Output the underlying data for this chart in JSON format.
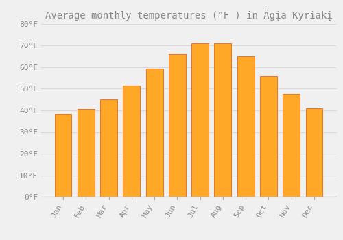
{
  "title": "Average monthly temperatures (°F ) in Ägįa Kyriakį",
  "months": [
    "Jan",
    "Feb",
    "Mar",
    "Apr",
    "May",
    "Jun",
    "Jul",
    "Aug",
    "Sep",
    "Oct",
    "Nov",
    "Dec"
  ],
  "values": [
    38.5,
    40.5,
    45.0,
    51.5,
    59.5,
    66.0,
    71.0,
    71.0,
    65.0,
    56.0,
    47.5,
    41.0
  ],
  "ylim": [
    0,
    80
  ],
  "yticks": [
    0,
    10,
    20,
    30,
    40,
    50,
    60,
    70,
    80
  ],
  "background_color": "#f0f0f0",
  "grid_color": "#d8d8d8",
  "title_fontsize": 10,
  "tick_fontsize": 8,
  "bar_color": "#FFA726",
  "bar_edge_color": "#E65100",
  "bar_linewidth": 0.5
}
